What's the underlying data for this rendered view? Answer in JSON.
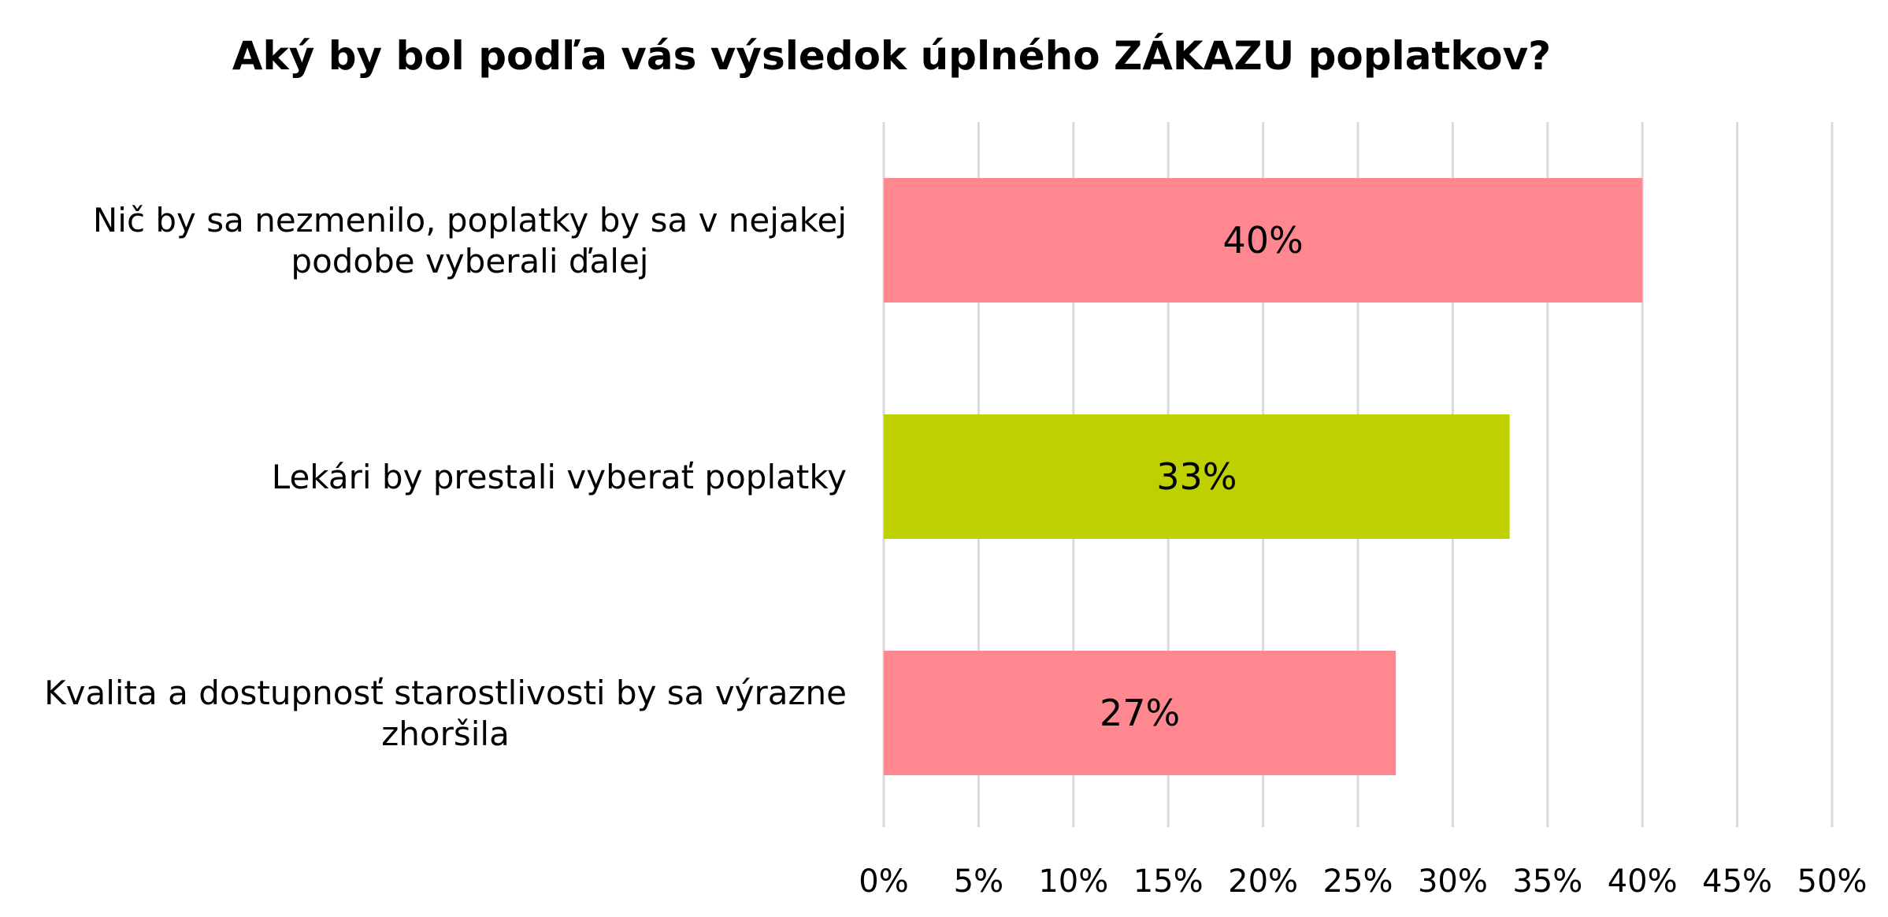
{
  "chart_data": {
    "type": "bar",
    "orientation": "horizontal",
    "title": "Aký by bol podľa vás výsledok úplného ZÁKAZU poplatkov?",
    "categories": [
      [
        "Nič by sa nezmenilo, poplatky by sa v nejakej",
        "podobe vyberali ďalej"
      ],
      [
        "Lekári by prestali vyberať poplatky"
      ],
      [
        "Kvalita a dostupnosť starostlivosti by sa výrazne",
        "zhoršila"
      ]
    ],
    "values": [
      40,
      33,
      27
    ],
    "data_labels": [
      "40%",
      "33%",
      "27%"
    ],
    "bar_colors": [
      "#ff8890",
      "#bfd000",
      "#ff8890"
    ],
    "xlim": [
      0,
      50
    ],
    "xticks": [
      0,
      5,
      10,
      15,
      20,
      25,
      30,
      35,
      40,
      45,
      50
    ],
    "xtick_labels": [
      "0%",
      "5%",
      "10%",
      "15%",
      "20%",
      "25%",
      "30%",
      "35%",
      "40%",
      "45%",
      "50%"
    ],
    "grid": true,
    "legend": "none"
  }
}
